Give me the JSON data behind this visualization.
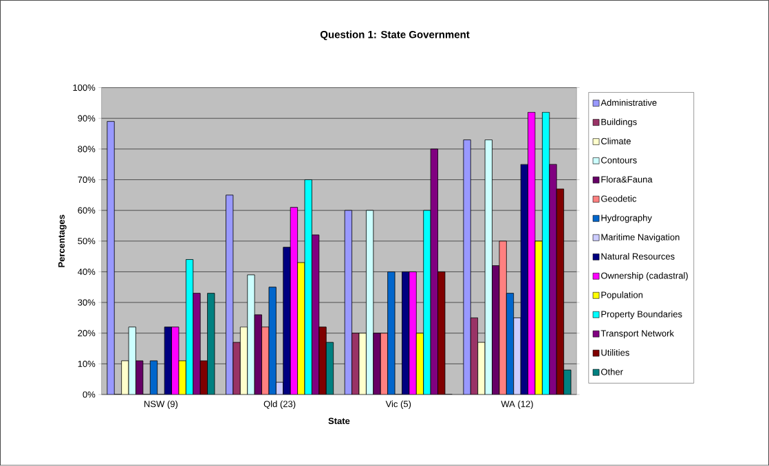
{
  "chart_data": {
    "type": "bar",
    "title": "Question 1: State Government",
    "xlabel": "State",
    "ylabel": "Percentages",
    "categories": [
      "NSW (9)",
      "Qld (23)",
      "Vic (5)",
      "WA (12)"
    ],
    "ylim": [
      0,
      100
    ],
    "yticks": [
      {
        "value": 0,
        "label": "0%"
      },
      {
        "value": 10,
        "label": "10%"
      },
      {
        "value": 20,
        "label": "20%"
      },
      {
        "value": 30,
        "label": "30%"
      },
      {
        "value": 40,
        "label": "40%"
      },
      {
        "value": 50,
        "label": "50%"
      },
      {
        "value": 60,
        "label": "60%"
      },
      {
        "value": 70,
        "label": "70%"
      },
      {
        "value": 80,
        "label": "80%"
      },
      {
        "value": 90,
        "label": "90%"
      },
      {
        "value": 100,
        "label": "100%"
      }
    ],
    "grid": "y",
    "legend": "right",
    "series": [
      {
        "name": "Administrative",
        "color": "#9999ff",
        "values": [
          89,
          65,
          60,
          83
        ]
      },
      {
        "name": "Buildings",
        "color": "#993366",
        "values": [
          0,
          17,
          20,
          25
        ]
      },
      {
        "name": "Climate",
        "color": "#ffffcc",
        "values": [
          11,
          22,
          20,
          17
        ]
      },
      {
        "name": "Contours",
        "color": "#ccffff",
        "values": [
          22,
          39,
          60,
          83
        ]
      },
      {
        "name": "Flora&Fauna",
        "color": "#660066",
        "values": [
          11,
          26,
          20,
          42
        ]
      },
      {
        "name": "Geodetic",
        "color": "#ff8080",
        "values": [
          0,
          22,
          20,
          50
        ]
      },
      {
        "name": "Hydrography",
        "color": "#0066cc",
        "values": [
          11,
          35,
          40,
          33
        ]
      },
      {
        "name": "Maritime Navigation",
        "color": "#ccccff",
        "values": [
          0,
          4,
          0,
          25
        ]
      },
      {
        "name": "Natural Resources",
        "color": "#000080",
        "values": [
          22,
          48,
          40,
          75
        ]
      },
      {
        "name": "Ownership (cadastral)",
        "color": "#ff00ff",
        "values": [
          22,
          61,
          40,
          92
        ]
      },
      {
        "name": "Population",
        "color": "#ffff00",
        "values": [
          11,
          43,
          20,
          50
        ]
      },
      {
        "name": "Property Boundaries",
        "color": "#00ffff",
        "values": [
          44,
          70,
          60,
          92
        ]
      },
      {
        "name": "Transport Network",
        "color": "#800080",
        "values": [
          33,
          52,
          80,
          75
        ]
      },
      {
        "name": "Utilities",
        "color": "#800000",
        "values": [
          11,
          22,
          40,
          67
        ]
      },
      {
        "name": "Other",
        "color": "#008080",
        "values": [
          33,
          17,
          0,
          8
        ]
      }
    ]
  }
}
